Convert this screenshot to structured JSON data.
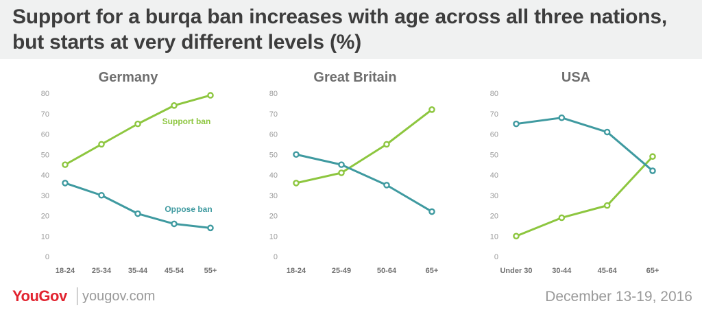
{
  "header": {
    "title_line1": "Support for a burqa ban increases with age across all three nations,",
    "title_line2": "but starts at very different levels (%)"
  },
  "footer": {
    "logo_text": "YouGov",
    "url": "yougov.com",
    "date": "December 13-19, 2016"
  },
  "colors": {
    "support": "#8dc63f",
    "oppose": "#3f9aa0",
    "axis_text": "#9a9a9a",
    "title_text": "#6e6e6e",
    "header_bg": "#f0f1f1"
  },
  "chart_data": [
    {
      "type": "line",
      "title": "Germany",
      "categories": [
        "18-24",
        "25-34",
        "35-44",
        "45-54",
        "55+"
      ],
      "series": [
        {
          "name": "Support ban",
          "values": [
            45,
            55,
            65,
            74,
            79
          ]
        },
        {
          "name": "Oppose ban",
          "values": [
            36,
            30,
            21,
            16,
            14
          ]
        }
      ],
      "yticks": [
        0,
        10,
        20,
        30,
        40,
        50,
        60,
        70,
        80
      ],
      "ylim": [
        0,
        80
      ],
      "grid": false
    },
    {
      "type": "line",
      "title": "Great Britain",
      "categories": [
        "18-24",
        "25-49",
        "50-64",
        "65+"
      ],
      "series": [
        {
          "values": [
            36,
            41,
            55,
            72
          ]
        },
        {
          "values": [
            50,
            45,
            35,
            22
          ]
        }
      ],
      "yticks": [
        0,
        10,
        20,
        30,
        40,
        50,
        60,
        70,
        80
      ],
      "ylim": [
        0,
        80
      ],
      "grid": false
    },
    {
      "type": "line",
      "title": "USA",
      "categories": [
        "Under 30",
        "30-44",
        "45-64",
        "65+"
      ],
      "series": [
        {
          "values": [
            10,
            19,
            25,
            49
          ]
        },
        {
          "values": [
            65,
            68,
            61,
            42
          ]
        }
      ],
      "yticks": [
        0,
        10,
        20,
        30,
        40,
        50,
        60,
        70,
        80
      ],
      "ylim": [
        0,
        80
      ],
      "grid": false
    }
  ]
}
